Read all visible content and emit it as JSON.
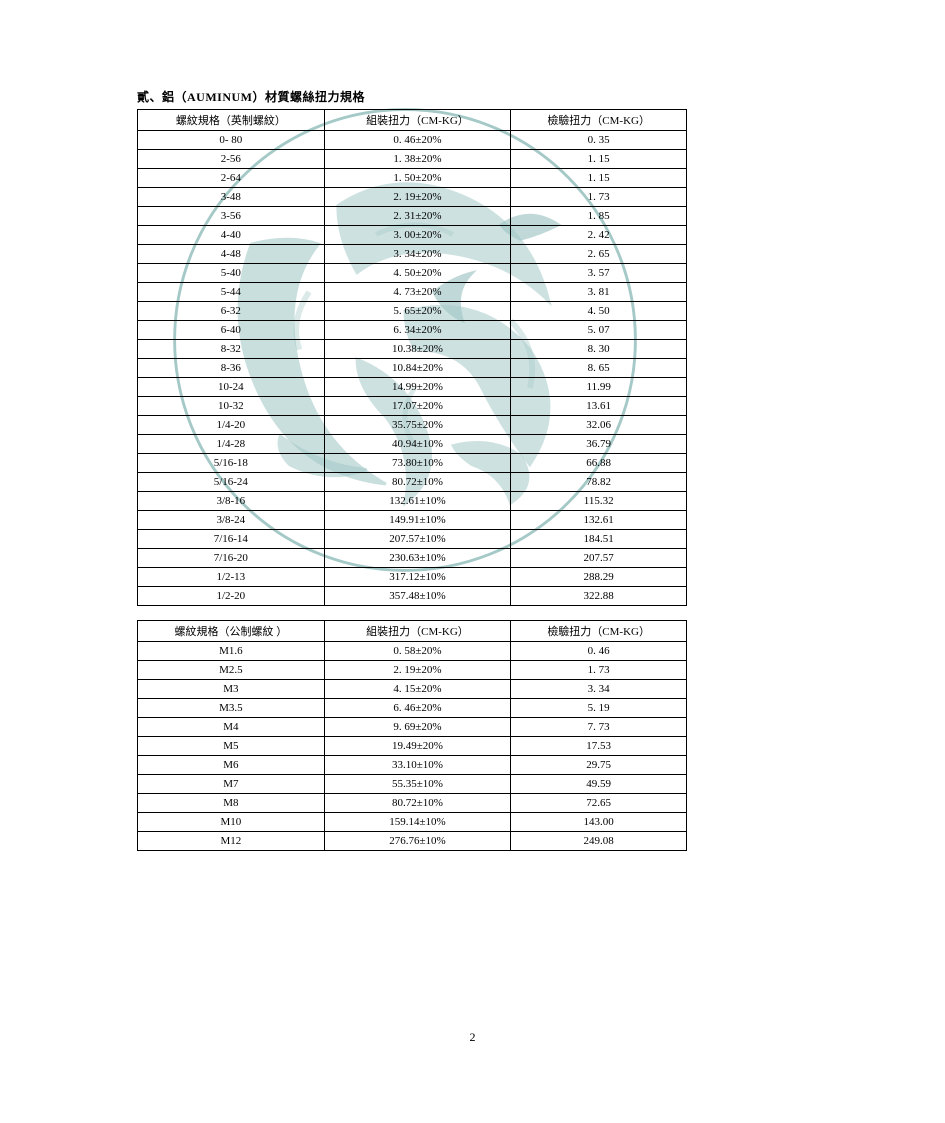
{
  "title": "貳、鋁（AUMINUM）材質螺絲扭力規格",
  "page_number": "2",
  "watermark_color": "#5a9d9b",
  "table1": {
    "headers": [
      "螺紋規格（英制螺紋）",
      "組裝扭力（CM-KG）",
      "檢驗扭力（CM-KG）"
    ],
    "rows": [
      [
        "0- 80",
        "0. 46±20%",
        "0. 35"
      ],
      [
        "2-56",
        "1. 38±20%",
        "1. 15"
      ],
      [
        "2-64",
        "1. 50±20%",
        "1. 15"
      ],
      [
        "3-48",
        "2. 19±20%",
        "1. 73"
      ],
      [
        "3-56",
        "2. 31±20%",
        "1. 85"
      ],
      [
        "4-40",
        "3. 00±20%",
        "2. 42"
      ],
      [
        "4-48",
        "3. 34±20%",
        "2. 65"
      ],
      [
        "5-40",
        "4. 50±20%",
        "3. 57"
      ],
      [
        "5-44",
        "4. 73±20%",
        "3. 81"
      ],
      [
        "6-32",
        "5. 65±20%",
        "4. 50"
      ],
      [
        "6-40",
        "6. 34±20%",
        "5. 07"
      ],
      [
        "8-32",
        "10.38±20%",
        "8. 30"
      ],
      [
        "8-36",
        "10.84±20%",
        "8. 65"
      ],
      [
        "10-24",
        "14.99±20%",
        "11.99"
      ],
      [
        "10-32",
        "17.07±20%",
        "13.61"
      ],
      [
        "1/4-20",
        "35.75±20%",
        "32.06"
      ],
      [
        "1/4-28",
        "40.94±10%",
        "36.79"
      ],
      [
        "5/16-18",
        "73.80±10%",
        "66.88"
      ],
      [
        "5/16-24",
        "80.72±10%",
        "78.82"
      ],
      [
        "3/8-16",
        "132.61±10%",
        "115.32"
      ],
      [
        "3/8-24",
        "149.91±10%",
        "132.61"
      ],
      [
        "7/16-14",
        "207.57±10%",
        "184.51"
      ],
      [
        "7/16-20",
        "230.63±10%",
        "207.57"
      ],
      [
        "1/2-13",
        "317.12±10%",
        "288.29"
      ],
      [
        "1/2-20",
        "357.48±10%",
        "322.88"
      ]
    ]
  },
  "table2": {
    "headers": [
      "螺紋規格（公制螺紋 ）",
      "組裝扭力（CM-KG）",
      "檢驗扭力（CM-KG）"
    ],
    "rows": [
      [
        "M1.6",
        "0. 58±20%",
        "0. 46"
      ],
      [
        "M2.5",
        "2. 19±20%",
        "1. 73"
      ],
      [
        "M3",
        "4. 15±20%",
        "3. 34"
      ],
      [
        "M3.5",
        "6. 46±20%",
        "5. 19"
      ],
      [
        "M4",
        "9. 69±20%",
        "7. 73"
      ],
      [
        "M5",
        "19.49±20%",
        "17.53"
      ],
      [
        "M6",
        "33.10±10%",
        "29.75"
      ],
      [
        "M7",
        "55.35±10%",
        "49.59"
      ],
      [
        "M8",
        "80.72±10%",
        "72.65"
      ],
      [
        "M10",
        "159.14±10%",
        "143.00"
      ],
      [
        "M12",
        "276.76±10%",
        "249.08"
      ]
    ]
  }
}
